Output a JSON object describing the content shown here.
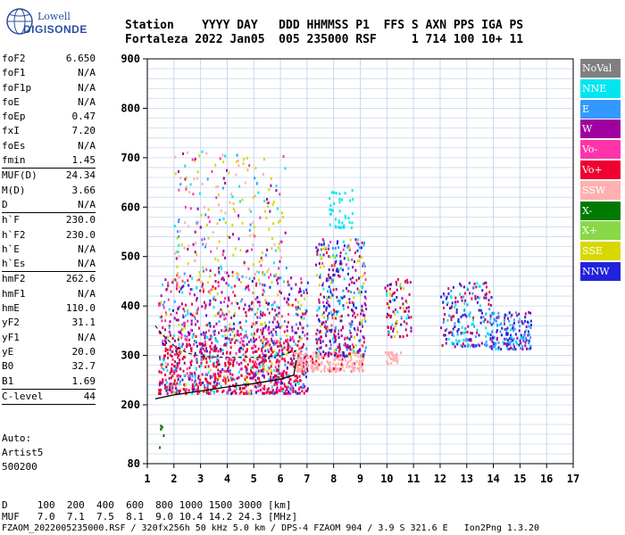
{
  "header": {
    "labels_line": "Station    YYYY DAY   DDD HHMMSS P1  FFS S AXN PPS IGA PS",
    "values_line": "Fortaleza 2022 Jan05  005 235000 RSF     1 714 100 10+ 11"
  },
  "logo": {
    "line1": "Lowell",
    "line2": "DIGISONDE"
  },
  "params": [
    {
      "name": "foF2",
      "value": "6.650"
    },
    {
      "name": "foF1",
      "value": "N/A"
    },
    {
      "name": "foF1p",
      "value": "N/A"
    },
    {
      "name": "foE",
      "value": "N/A"
    },
    {
      "name": "foEp",
      "value": "0.47"
    },
    {
      "name": "fxI",
      "value": "7.20"
    },
    {
      "name": "foEs",
      "value": "N/A"
    },
    {
      "name": "fmin",
      "value": "1.45"
    },
    {
      "sep": true
    },
    {
      "name": "MUF(D)",
      "value": "24.34"
    },
    {
      "name": "M(D)",
      "value": "3.66"
    },
    {
      "name": "D",
      "value": "N/A"
    },
    {
      "sep": true
    },
    {
      "name": "h`F",
      "value": "230.0"
    },
    {
      "name": "h`F2",
      "value": "230.0"
    },
    {
      "name": "h`E",
      "value": "N/A"
    },
    {
      "name": "h`Es",
      "value": "N/A"
    },
    {
      "sep": true
    },
    {
      "name": "hmF2",
      "value": "262.6"
    },
    {
      "name": "hmF1",
      "value": "N/A"
    },
    {
      "name": "hmE",
      "value": "110.0"
    },
    {
      "name": "yF2",
      "value": "31.1"
    },
    {
      "name": "yF1",
      "value": "N/A"
    },
    {
      "name": "yE",
      "value": "20.0"
    },
    {
      "name": "B0",
      "value": "32.7"
    },
    {
      "name": "B1",
      "value": "1.69"
    },
    {
      "sep": true
    },
    {
      "name": "C-level",
      "value": "44"
    },
    {
      "sep": true
    }
  ],
  "auto": {
    "line1": "Auto:",
    "line2": "Artist5",
    "line3": "500200"
  },
  "footer": {
    "d_line": "D     100  200  400  600  800 1000 1500 3000 [km]",
    "muf_line": "MUF   7.0  7.1  7.5  8.1  9.0 10.4 14.2 24.3 [MHz]",
    "file_line": "FZAOM_2022005235000.RSF / 320fx256h 50 kHz 5.0 km / DPS-4 FZAOM 904 / 3.9 S 321.6 E   Ion2Png 1.3.20"
  },
  "legend": [
    {
      "label": "NoVal",
      "color": "#808080",
      "text_color": "#ffffff"
    },
    {
      "label": "NNE",
      "color": "#00e6f0",
      "text_color": "#ffffff"
    },
    {
      "label": "E",
      "color": "#3399ff",
      "text_color": "#ffffff"
    },
    {
      "label": "W",
      "color": "#a000a0",
      "text_color": "#ffffff"
    },
    {
      "label": "Vo-",
      "color": "#ff33aa",
      "text_color": "#ffffff"
    },
    {
      "label": "Vo+",
      "color": "#ee0033",
      "text_color": "#ffffff"
    },
    {
      "label": "SSW",
      "color": "#ffb0b0",
      "text_color": "#ffffff"
    },
    {
      "label": "X-",
      "color": "#007a00",
      "text_color": "#ffffff"
    },
    {
      "label": "X+",
      "color": "#88d848",
      "text_color": "#ffffff"
    },
    {
      "label": "SSE",
      "color": "#d8d800",
      "text_color": "#ffffff"
    },
    {
      "label": "NNW",
      "color": "#2222dd",
      "text_color": "#ffffff"
    }
  ],
  "chart_data": {
    "type": "scatter",
    "title": "",
    "xlabel": "",
    "ylabel": "",
    "xlim": [
      1,
      17
    ],
    "ylim": [
      80,
      900
    ],
    "x_ticks": [
      1,
      2,
      3,
      4,
      5,
      6,
      7,
      8,
      9,
      10,
      11,
      12,
      13,
      14,
      15,
      16,
      17
    ],
    "y_ticks": [
      80,
      200,
      300,
      400,
      500,
      600,
      700,
      800,
      900
    ],
    "grid": true,
    "legend_placement": "right",
    "profile_line": [
      [
        1.3,
        212
      ],
      [
        2,
        220
      ],
      [
        3,
        228
      ],
      [
        4,
        236
      ],
      [
        5,
        243
      ],
      [
        6,
        252
      ],
      [
        6.5,
        260
      ],
      [
        6.6,
        290
      ]
    ],
    "dashed_line": [
      [
        1.3,
        360
      ],
      [
        1.6,
        340
      ],
      [
        2,
        320
      ],
      [
        2.5,
        305
      ],
      [
        3,
        298
      ],
      [
        4,
        296
      ],
      [
        5,
        296
      ],
      [
        6,
        300
      ],
      [
        6.6,
        310
      ]
    ],
    "clusters": [
      {
        "x": [
          1.4,
          7.0
        ],
        "y": [
          225,
          330
        ],
        "n": 900,
        "mix": {
          "Vo+": 0.45,
          "W": 0.15,
          "Vo-": 0.12,
          "NNW": 0.08,
          "E": 0.08,
          "SSE": 0.06,
          "NNE": 0.06
        }
      },
      {
        "x": [
          1.4,
          7.0
        ],
        "y": [
          330,
          460
        ],
        "n": 520,
        "mix": {
          "W": 0.25,
          "Vo-": 0.2,
          "SSE": 0.15,
          "Vo+": 0.15,
          "NNW": 0.1,
          "NNE": 0.08,
          "E": 0.07
        }
      },
      {
        "x": [
          2.0,
          6.2
        ],
        "y": [
          460,
          720
        ],
        "n": 260,
        "mix": {
          "SSE": 0.35,
          "SSW": 0.2,
          "W": 0.15,
          "Vo-": 0.12,
          "NNE": 0.1,
          "E": 0.08
        }
      },
      {
        "x": [
          6.5,
          9.1
        ],
        "y": [
          270,
          310
        ],
        "n": 220,
        "mix": {
          "SSW": 0.9,
          "Vo+": 0.1
        }
      },
      {
        "x": [
          7.3,
          9.2
        ],
        "y": [
          300,
          540
        ],
        "n": 420,
        "mix": {
          "NNW": 0.2,
          "W": 0.22,
          "Vo+": 0.16,
          "SSE": 0.14,
          "NNE": 0.1,
          "E": 0.1,
          "Vo-": 0.08
        }
      },
      {
        "x": [
          7.8,
          8.7
        ],
        "y": [
          560,
          640
        ],
        "n": 40,
        "mix": {
          "NNE": 1.0
        }
      },
      {
        "x": [
          9.9,
          10.9
        ],
        "y": [
          340,
          460
        ],
        "n": 90,
        "mix": {
          "Vo+": 0.3,
          "W": 0.3,
          "SSE": 0.2,
          "NNE": 0.1,
          "NNW": 0.1
        }
      },
      {
        "x": [
          9.9,
          10.5
        ],
        "y": [
          285,
          310
        ],
        "n": 30,
        "mix": {
          "SSW": 1.0
        }
      },
      {
        "x": [
          12.0,
          13.9
        ],
        "y": [
          320,
          450
        ],
        "n": 200,
        "mix": {
          "NNE": 0.25,
          "E": 0.2,
          "W": 0.2,
          "NNW": 0.2,
          "Vo+": 0.15
        }
      },
      {
        "x": [
          13.9,
          15.4
        ],
        "y": [
          315,
          390
        ],
        "n": 170,
        "mix": {
          "E": 0.35,
          "NNW": 0.3,
          "W": 0.2,
          "NNE": 0.15
        }
      },
      {
        "x": [
          1.4,
          1.6
        ],
        "y": [
          115,
          160
        ],
        "n": 5,
        "mix": {
          "X-": 1.0
        }
      }
    ]
  }
}
